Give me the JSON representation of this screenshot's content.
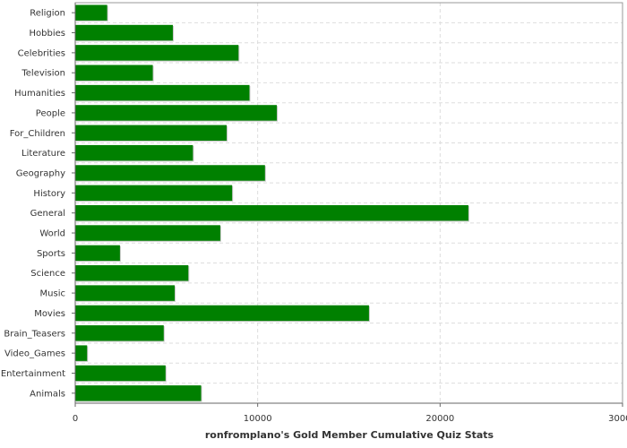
{
  "chart_data": {
    "type": "bar",
    "orientation": "horizontal",
    "title": "",
    "xlabel": "ronfromplano's Gold Member Cumulative Quiz Stats",
    "ylabel": "",
    "xlim": [
      0,
      30000
    ],
    "x_ticks": [
      0,
      10000,
      20000,
      30000
    ],
    "x_tick_labels": [
      "0",
      "10000",
      "20000",
      "30000"
    ],
    "grid": true,
    "bar_color": "#008000",
    "categories": [
      "Religion",
      "Hobbies",
      "Celebrities",
      "Television",
      "Humanities",
      "People",
      "For_Children",
      "Literature",
      "Geography",
      "History",
      "General",
      "World",
      "Sports",
      "Science",
      "Music",
      "Movies",
      "Brain_Teasers",
      "Video_Games",
      "Entertainment",
      "Animals"
    ],
    "values": [
      1750,
      5350,
      8950,
      4250,
      9550,
      11050,
      8300,
      6450,
      10400,
      8600,
      21550,
      7950,
      2450,
      6200,
      5450,
      16100,
      4850,
      650,
      4950,
      6900
    ]
  }
}
